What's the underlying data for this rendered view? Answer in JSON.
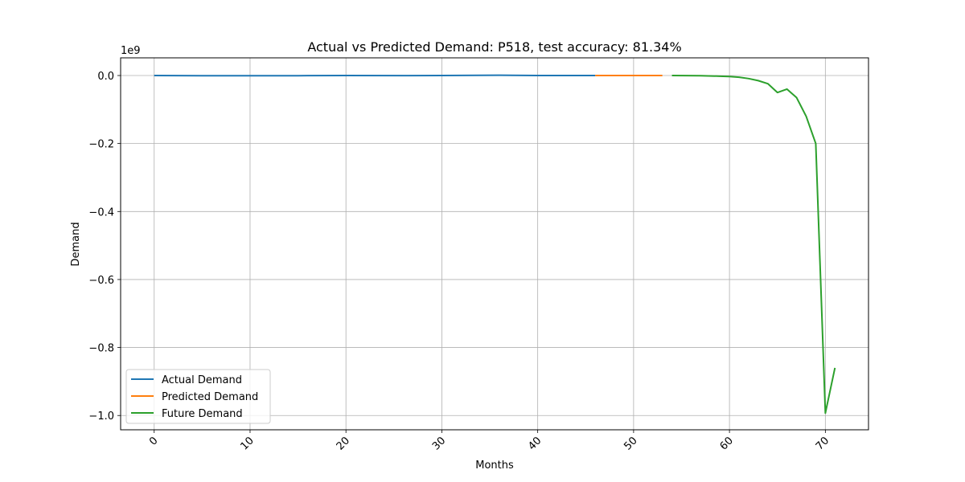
{
  "chart_data": {
    "type": "line",
    "title": "Actual vs Predicted Demand: P518, test accuracy: 81.34%",
    "xlabel": "Months",
    "ylabel": "Demand",
    "y_offset_label": "1e9",
    "y_scale": 1000000000,
    "xlim": [
      -3.5,
      74.5
    ],
    "ylim": [
      -1.042,
      0.052
    ],
    "x_ticks": [
      0,
      10,
      20,
      30,
      40,
      50,
      60,
      70
    ],
    "y_ticks": [
      0.0,
      -0.2,
      -0.4,
      -0.6,
      -0.8,
      -1.0
    ],
    "y_tick_labels": [
      "0.0",
      "−0.2",
      "−0.4",
      "−0.6",
      "−0.8",
      "−1.0"
    ],
    "grid": true,
    "legend_position": "lower-left",
    "series": [
      {
        "name": "Actual Demand",
        "color": "#1f77b4",
        "x": [
          0,
          5,
          10,
          15,
          20,
          26,
          30,
          36,
          40,
          46
        ],
        "y": [
          0.0,
          -0.0005,
          -0.0005,
          -0.0005,
          0.0,
          -0.0003,
          0.0,
          0.0008,
          0.0,
          0.0
        ]
      },
      {
        "name": "Predicted Demand",
        "color": "#ff7f0e",
        "x": [
          46,
          50,
          53
        ],
        "y": [
          0.0,
          0.0,
          0.0
        ]
      },
      {
        "name": "Future Demand",
        "color": "#2ca02c",
        "x": [
          54,
          57,
          59,
          60,
          61,
          62,
          63,
          64,
          65,
          66,
          67,
          68,
          69,
          70,
          71
        ],
        "y": [
          0.0,
          -0.0005,
          -0.002,
          -0.003,
          -0.005,
          -0.009,
          -0.015,
          -0.024,
          -0.05,
          -0.04,
          -0.065,
          -0.12,
          -0.2,
          -0.993,
          -0.86
        ]
      }
    ]
  }
}
